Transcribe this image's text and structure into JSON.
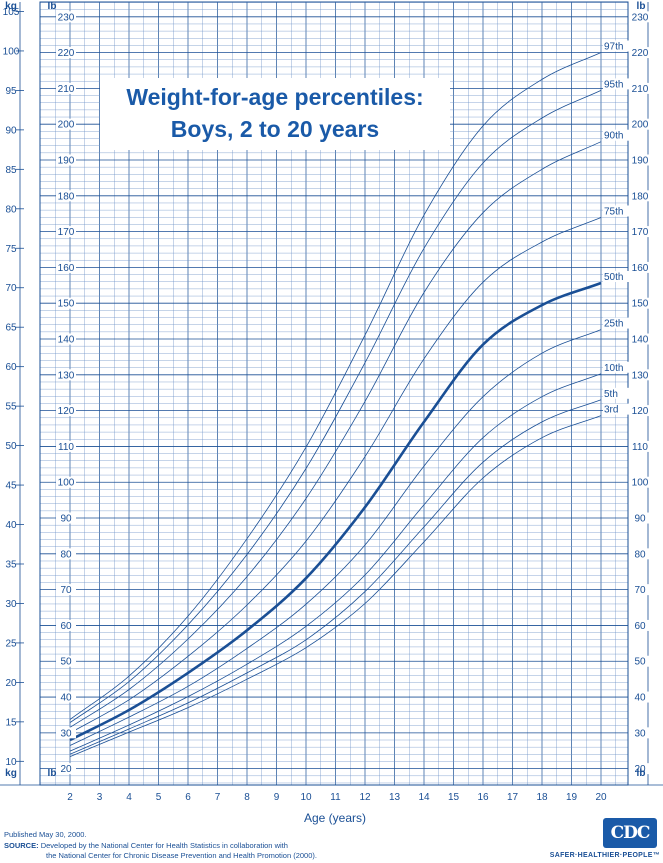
{
  "chart_data": {
    "type": "line",
    "title": [
      "Weight-for-age percentiles:",
      "Boys, 2 to 20 years"
    ],
    "xlabel": "Age (years)",
    "ylabel_left": "kg",
    "ylabel_right": "lb",
    "xlim": [
      2,
      20
    ],
    "ylim_kg": [
      7,
      106
    ],
    "x": [
      2,
      4,
      6,
      8,
      10,
      12,
      14,
      16,
      18,
      20
    ],
    "x_ticks": [
      2,
      3,
      4,
      5,
      6,
      7,
      8,
      9,
      10,
      11,
      12,
      13,
      14,
      15,
      16,
      17,
      18,
      19,
      20
    ],
    "kg_ticks": [
      10,
      15,
      20,
      25,
      30,
      35,
      40,
      45,
      50,
      55,
      60,
      65,
      70,
      75,
      80,
      85,
      90,
      95,
      100,
      105
    ],
    "lb_ticks": [
      20,
      30,
      40,
      50,
      60,
      70,
      80,
      90,
      100,
      110,
      120,
      130,
      140,
      150,
      160,
      170,
      180,
      190,
      200,
      210,
      220,
      230
    ],
    "grid": true,
    "series": [
      {
        "name": "3rd",
        "unit": "kg",
        "bold": false,
        "values": [
          10.6,
          13.7,
          16.8,
          20.4,
          24.4,
          30.0,
          37.8,
          45.9,
          51.0,
          53.8
        ]
      },
      {
        "name": "5th",
        "unit": "kg",
        "bold": false,
        "values": [
          10.9,
          14.1,
          17.4,
          21.2,
          25.4,
          31.5,
          39.7,
          47.9,
          53.0,
          55.8
        ]
      },
      {
        "name": "10th",
        "unit": "kg",
        "bold": false,
        "values": [
          11.3,
          14.6,
          18.2,
          22.3,
          27.1,
          33.6,
          42.5,
          51.0,
          56.2,
          59.1
        ]
      },
      {
        "name": "25th",
        "unit": "kg",
        "bold": false,
        "values": [
          12.0,
          15.6,
          19.5,
          24.3,
          29.9,
          37.4,
          47.4,
          56.2,
          61.7,
          64.7
        ]
      },
      {
        "name": "50th",
        "unit": "kg",
        "bold": true,
        "values": [
          12.7,
          16.5,
          21.2,
          26.6,
          33.2,
          42.2,
          53.0,
          62.8,
          67.8,
          70.6
        ]
      },
      {
        "name": "75th",
        "unit": "kg",
        "bold": false,
        "values": [
          13.6,
          17.8,
          23.3,
          29.8,
          37.9,
          48.6,
          61.0,
          70.7,
          75.8,
          78.9
        ]
      },
      {
        "name": "90th",
        "unit": "kg",
        "bold": false,
        "values": [
          14.3,
          19.1,
          25.5,
          33.4,
          43.3,
          55.6,
          69.4,
          79.5,
          85.0,
          88.5
        ]
      },
      {
        "name": "95th",
        "unit": "kg",
        "bold": false,
        "values": [
          14.9,
          20.1,
          27.3,
          36.2,
          47.1,
          60.5,
          75.0,
          85.8,
          91.5,
          95.0
        ]
      },
      {
        "name": "97th",
        "unit": "kg",
        "bold": false,
        "values": [
          15.3,
          20.8,
          28.4,
          38.2,
          49.8,
          64.0,
          79.2,
          90.5,
          96.4,
          99.8
        ]
      }
    ]
  },
  "colors": {
    "line": "#1a4f95",
    "grid_major": "#1a4f95",
    "grid_minor": "#6f93c8"
  },
  "footer": {
    "published": "Published May 30, 2000.",
    "source_label": "SOURCE:",
    "source_line1": "Developed by the National Center for Health Statistics in collaboration with",
    "source_line2": "the National Center for Chronic Disease Prevention and Health Promotion (2000)."
  },
  "logo": {
    "text": "CDC",
    "tagline": "SAFER·HEALTHIER·PEOPLE™"
  }
}
